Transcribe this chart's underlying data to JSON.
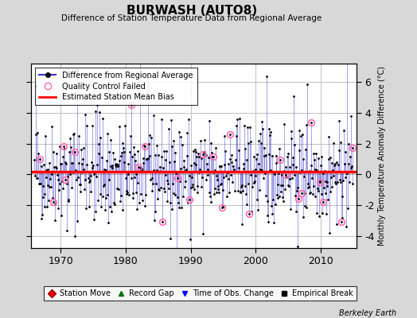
{
  "title": "BURWASH (AUTO8)",
  "subtitle": "Difference of Station Temperature Data from Regional Average",
  "ylabel": "Monthly Temperature Anomaly Difference (°C)",
  "xlabel_years": [
    1970,
    1980,
    1990,
    2000,
    2010
  ],
  "yticks": [
    -4,
    -2,
    0,
    2,
    4,
    6
  ],
  "ylim": [
    -4.8,
    7.2
  ],
  "xlim": [
    1965.5,
    2015.5
  ],
  "bias_value": 0.15,
  "mean_bias_color": "#ff0000",
  "line_color": "#3333cc",
  "line_alpha": 0.45,
  "dot_color": "#000000",
  "dot_size": 2.0,
  "qc_fail_color": "#ff69b4",
  "background_color": "#d8d8d8",
  "plot_bg_color": "#ffffff",
  "grid_color": "#c0c0c0",
  "berkeley_earth_text": "Berkeley Earth",
  "seed": 42,
  "n_years": 49,
  "start_year": 1966,
  "months_per_year": 12,
  "noise_scale": 1.6,
  "spike_scale": 1.8
}
